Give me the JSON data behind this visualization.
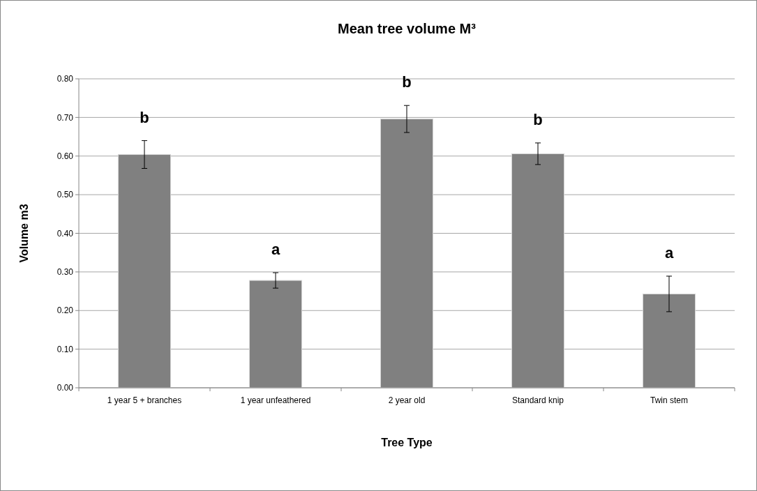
{
  "chart_data": {
    "type": "bar",
    "title": "Mean tree volume M³",
    "xlabel": "Tree Type",
    "ylabel": "Volume m3",
    "categories": [
      "1 year 5 + branches",
      "1 year unfeathered",
      "2 year old",
      "Standard knip",
      "Twin stem"
    ],
    "values": [
      0.604,
      0.278,
      0.696,
      0.606,
      0.243
    ],
    "errors": [
      0.036,
      0.02,
      0.035,
      0.028,
      0.046
    ],
    "color": "#808080",
    "ylim": [
      0,
      0.8
    ],
    "yticks": [
      {
        "value": 0,
        "label": "0.00"
      },
      {
        "value": 0.1,
        "label": "0.10"
      },
      {
        "value": 0.2,
        "label": "0.20"
      },
      {
        "value": 0.3,
        "label": "0.30"
      },
      {
        "value": 0.4,
        "label": "0.40"
      },
      {
        "value": 0.5,
        "label": "0.50"
      },
      {
        "value": 0.6,
        "label": "0.60"
      },
      {
        "value": 0.7,
        "label": "0.70"
      },
      {
        "value": 0.8,
        "label": "0.80"
      }
    ],
    "grid": "y",
    "annotations": [
      "b",
      "a",
      "b",
      "b",
      "a"
    ]
  }
}
